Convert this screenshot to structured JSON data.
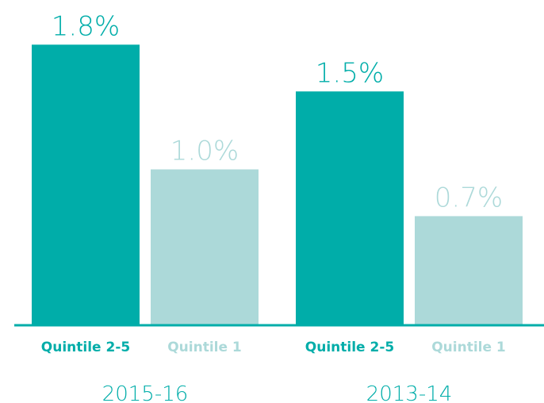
{
  "chart_data": {
    "type": "bar",
    "categories": [
      "2015-16",
      "2013-14"
    ],
    "series": [
      {
        "name": "Quintile 2-5",
        "color": "#00ada9",
        "values": [
          1.8,
          1.5
        ],
        "value_labels": [
          "1.8%",
          "1.5%"
        ]
      },
      {
        "name": "Quintile 1",
        "color": "#acd9d9",
        "values": [
          1.0,
          0.7
        ],
        "value_labels": [
          "1.0%",
          "0.7%"
        ]
      }
    ],
    "ylim": [
      0,
      2
    ]
  }
}
